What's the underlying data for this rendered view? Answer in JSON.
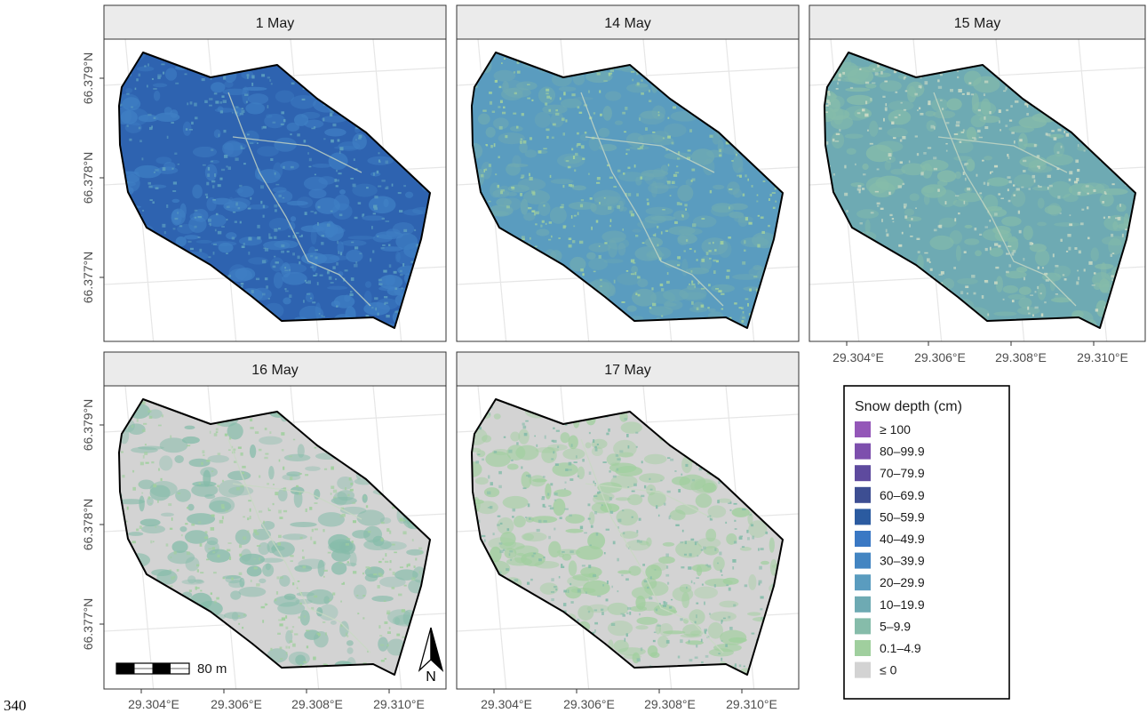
{
  "page_number": "340",
  "panels": [
    {
      "label": "1 May"
    },
    {
      "label": "14 May"
    },
    {
      "label": "15 May"
    },
    {
      "label": "16 May"
    },
    {
      "label": "17 May"
    }
  ],
  "x_ticks": [
    "29.304°E",
    "29.306°E",
    "29.308°E",
    "29.310°E"
  ],
  "y_ticks": [
    "66.379°N",
    "66.378°N",
    "66.377°N"
  ],
  "scale_bar_label": "80 m",
  "north_arrow_label": "N",
  "legend": {
    "title": "Snow depth (cm)",
    "items": [
      {
        "label": "≥ 100",
        "color": "#9457b8"
      },
      {
        "label": "80–99.9",
        "color": "#7d4fad"
      },
      {
        "label": "70–79.9",
        "color": "#5e4a9e"
      },
      {
        "label": "60–69.9",
        "color": "#3d4e92"
      },
      {
        "label": "50–59.9",
        "color": "#2b5ba0"
      },
      {
        "label": "40–49.9",
        "color": "#3a78c4"
      },
      {
        "label": "30–39.9",
        "color": "#4385c2"
      },
      {
        "label": "20–29.9",
        "color": "#5a9cbf"
      },
      {
        "label": "10–19.9",
        "color": "#6eaab3"
      },
      {
        "label": "5–9.9",
        "color": "#86bcaa"
      },
      {
        "label": "0.1–4.9",
        "color": "#a0cf9e"
      },
      {
        "label": "≤ 0",
        "color": "#d3d3d3"
      }
    ]
  },
  "panel_fills": {
    "may1": {
      "base": "#2e63b0",
      "patch": "#3f7fc4",
      "speck": "#5a9cbf"
    },
    "may14": {
      "base": "#5a9cbf",
      "patch": "#6eaab3",
      "speck": "#a0cf9e"
    },
    "may15": {
      "base": "#6eaab3",
      "patch": "#86bcaa",
      "speck": "#c9d9c4"
    },
    "may16": {
      "base": "#d3d3d3",
      "patch": "#86bcaa",
      "speck": "#a0cf9e"
    },
    "may17": {
      "base": "#d3d3d3",
      "patch": "#a0cf9e",
      "speck": "#86bcaa"
    }
  }
}
